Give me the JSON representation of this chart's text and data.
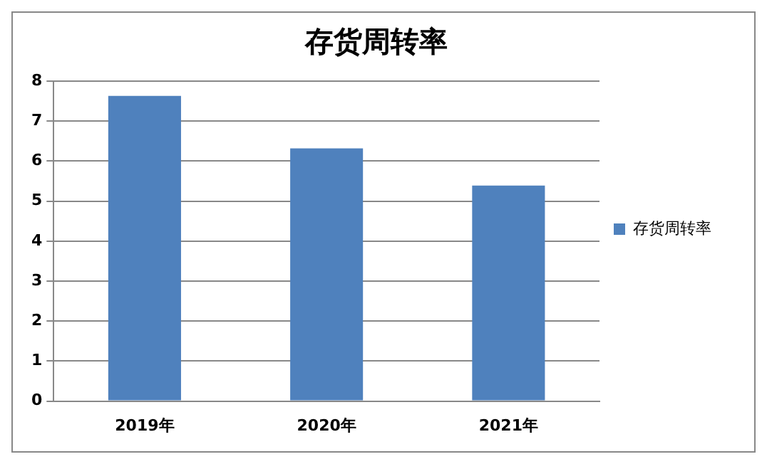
{
  "chart_data": {
    "type": "bar",
    "title": "存货周转率",
    "categories": [
      "2019年",
      "2020年",
      "2021年"
    ],
    "series": [
      {
        "name": "存货周转率",
        "color": "#4f81bd",
        "values": [
          7.63,
          6.32,
          5.39
        ]
      }
    ],
    "ylim": [
      0,
      8
    ],
    "yticks": [
      0,
      1,
      2,
      3,
      4,
      5,
      6,
      7,
      8
    ],
    "grid": "y",
    "legend": "right"
  }
}
